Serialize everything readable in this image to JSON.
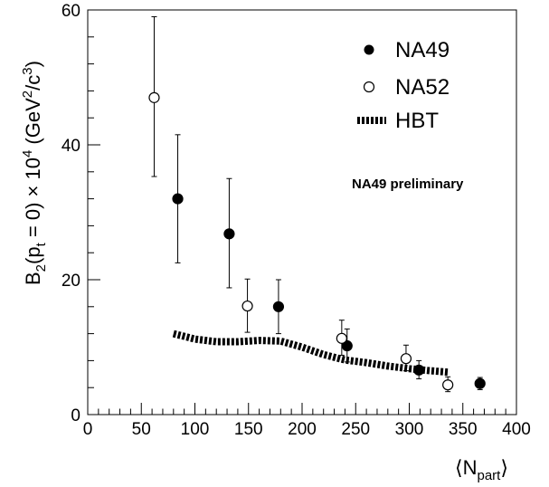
{
  "chart_data": {
    "type": "scatter",
    "x_axis": {
      "range": [
        0,
        400
      ],
      "major_ticks": [
        0,
        50,
        100,
        150,
        200,
        250,
        300,
        350,
        400
      ],
      "tick_labels": [
        "0",
        "50",
        "100",
        "150",
        "200",
        "250",
        "300",
        "350",
        "400"
      ],
      "minor_step": 10,
      "label": {
        "main": "⟨N",
        "sub": "part",
        "close": "⟩"
      }
    },
    "y_axis": {
      "range": [
        0,
        60
      ],
      "major_ticks": [
        0,
        20,
        40,
        60
      ],
      "tick_labels": [
        "0",
        "20",
        "40",
        "60"
      ],
      "minor_step": 4,
      "label": {
        "p1": "B",
        "s1": "2",
        "p2": "(p",
        "s2": "t",
        "p3": " = 0) × 10",
        "e1": "4",
        "p4": " (GeV",
        "e2": "2",
        "p5": "/c",
        "e3": "3",
        "p6": ")"
      }
    },
    "grid": false,
    "legend_position": "top-right",
    "legend": [
      {
        "label": "NA49",
        "marker": "filled-circle"
      },
      {
        "label": "NA52",
        "marker": "open-circle"
      },
      {
        "label": "HBT",
        "marker": "thick-dashed-line"
      }
    ],
    "annotation": "NA49 preliminary",
    "series": [
      {
        "name": "NA49",
        "marker": "filled-circle",
        "points": [
          {
            "x": 84,
            "y": 32.0,
            "ylo": 22.5,
            "yhi": 41.5
          },
          {
            "x": 132,
            "y": 26.8,
            "ylo": 18.8,
            "yhi": 35.0
          },
          {
            "x": 178,
            "y": 16.0,
            "ylo": 12.0,
            "yhi": 20.0
          },
          {
            "x": 242,
            "y": 10.2,
            "ylo": 7.8,
            "yhi": 12.7
          },
          {
            "x": 309,
            "y": 6.6,
            "ylo": 5.3,
            "yhi": 8.0
          },
          {
            "x": 366,
            "y": 4.6,
            "ylo": 3.7,
            "yhi": 5.5
          }
        ]
      },
      {
        "name": "NA52",
        "marker": "open-circle",
        "points": [
          {
            "x": 62,
            "y": 47.0,
            "ylo": 35.3,
            "yhi": 59.0
          },
          {
            "x": 149,
            "y": 16.1,
            "ylo": 12.2,
            "yhi": 20.1
          },
          {
            "x": 237,
            "y": 11.3,
            "ylo": 8.8,
            "yhi": 14.0
          },
          {
            "x": 297,
            "y": 8.3,
            "ylo": 6.5,
            "yhi": 10.3
          },
          {
            "x": 336,
            "y": 4.4,
            "ylo": 3.4,
            "yhi": 5.6
          }
        ]
      },
      {
        "name": "HBT",
        "marker": "thick-dashed-line",
        "points": [
          {
            "x": 80,
            "y": 12.0
          },
          {
            "x": 100,
            "y": 11.2
          },
          {
            "x": 120,
            "y": 10.8
          },
          {
            "x": 140,
            "y": 10.8
          },
          {
            "x": 160,
            "y": 11.0
          },
          {
            "x": 180,
            "y": 10.9
          },
          {
            "x": 200,
            "y": 10.0
          },
          {
            "x": 220,
            "y": 8.9
          },
          {
            "x": 240,
            "y": 8.1
          },
          {
            "x": 260,
            "y": 7.7
          },
          {
            "x": 280,
            "y": 7.2
          },
          {
            "x": 300,
            "y": 6.8
          },
          {
            "x": 320,
            "y": 6.5
          },
          {
            "x": 336,
            "y": 6.3
          }
        ]
      }
    ]
  }
}
